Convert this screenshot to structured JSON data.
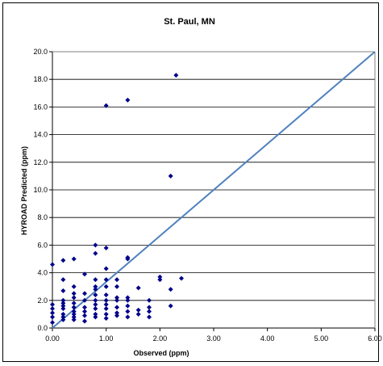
{
  "chart_data": {
    "type": "scatter",
    "title": "St. Paul, MN",
    "xlabel": "Observed (ppm)",
    "ylabel": "HYROAD Predicted (ppm)",
    "xlim": [
      0,
      6
    ],
    "ylim": [
      0,
      20
    ],
    "x_ticks": [
      "0.00",
      "1.00",
      "2.00",
      "3.00",
      "4.00",
      "5.00",
      "6.00"
    ],
    "y_ticks": [
      "0.0",
      "2.0",
      "4.0",
      "6.0",
      "8.0",
      "10.0",
      "12.0",
      "14.0",
      "16.0",
      "18.0",
      "20.0"
    ],
    "grid": "horizontal major",
    "legend": "none",
    "marker_color": "#00008B",
    "line_color": "#4F81BD",
    "reference_line": {
      "x": [
        0,
        6
      ],
      "y": [
        0,
        20
      ]
    },
    "points": [
      [
        0.0,
        4.6
      ],
      [
        0.0,
        1.7
      ],
      [
        0.0,
        1.4
      ],
      [
        0.0,
        1.1
      ],
      [
        0.0,
        0.8
      ],
      [
        0.0,
        0.4
      ],
      [
        0.2,
        4.9
      ],
      [
        0.2,
        3.5
      ],
      [
        0.2,
        2.7
      ],
      [
        0.2,
        2.0
      ],
      [
        0.2,
        1.8
      ],
      [
        0.2,
        1.6
      ],
      [
        0.2,
        1.4
      ],
      [
        0.2,
        1.0
      ],
      [
        0.2,
        0.8
      ],
      [
        0.2,
        0.6
      ],
      [
        0.4,
        5.0
      ],
      [
        0.4,
        3.0
      ],
      [
        0.4,
        2.5
      ],
      [
        0.4,
        2.2
      ],
      [
        0.4,
        1.8
      ],
      [
        0.4,
        1.5
      ],
      [
        0.4,
        1.2
      ],
      [
        0.4,
        1.0
      ],
      [
        0.4,
        0.8
      ],
      [
        0.4,
        0.6
      ],
      [
        0.6,
        3.9
      ],
      [
        0.6,
        2.5
      ],
      [
        0.6,
        2.0
      ],
      [
        0.6,
        1.5
      ],
      [
        0.6,
        1.2
      ],
      [
        0.6,
        0.9
      ],
      [
        0.6,
        0.5
      ],
      [
        0.8,
        6.0
      ],
      [
        0.8,
        5.4
      ],
      [
        0.8,
        3.5
      ],
      [
        0.8,
        3.0
      ],
      [
        0.8,
        2.8
      ],
      [
        0.8,
        2.4
      ],
      [
        0.8,
        2.0
      ],
      [
        0.8,
        1.7
      ],
      [
        0.8,
        1.4
      ],
      [
        0.8,
        1.0
      ],
      [
        0.8,
        0.8
      ],
      [
        1.0,
        16.1
      ],
      [
        1.0,
        5.8
      ],
      [
        1.0,
        4.3
      ],
      [
        1.0,
        3.5
      ],
      [
        1.0,
        3.0
      ],
      [
        1.0,
        2.4
      ],
      [
        1.0,
        2.0
      ],
      [
        1.0,
        1.7
      ],
      [
        1.0,
        1.4
      ],
      [
        1.0,
        1.0
      ],
      [
        1.0,
        0.7
      ],
      [
        1.2,
        3.5
      ],
      [
        1.2,
        3.0
      ],
      [
        1.2,
        2.2
      ],
      [
        1.2,
        2.0
      ],
      [
        1.2,
        1.5
      ],
      [
        1.2,
        1.1
      ],
      [
        1.2,
        0.9
      ],
      [
        1.4,
        16.5
      ],
      [
        1.4,
        5.1
      ],
      [
        1.4,
        5.0
      ],
      [
        1.4,
        2.2
      ],
      [
        1.4,
        2.0
      ],
      [
        1.4,
        1.6
      ],
      [
        1.4,
        1.2
      ],
      [
        1.4,
        0.8
      ],
      [
        1.6,
        2.9
      ],
      [
        1.6,
        1.3
      ],
      [
        1.6,
        1.0
      ],
      [
        1.8,
        2.0
      ],
      [
        1.8,
        1.5
      ],
      [
        1.8,
        1.2
      ],
      [
        1.8,
        0.8
      ],
      [
        2.0,
        3.7
      ],
      [
        2.0,
        3.5
      ],
      [
        2.2,
        11.0
      ],
      [
        2.2,
        2.8
      ],
      [
        2.2,
        1.6
      ],
      [
        2.3,
        18.3
      ],
      [
        2.4,
        3.6
      ]
    ]
  }
}
